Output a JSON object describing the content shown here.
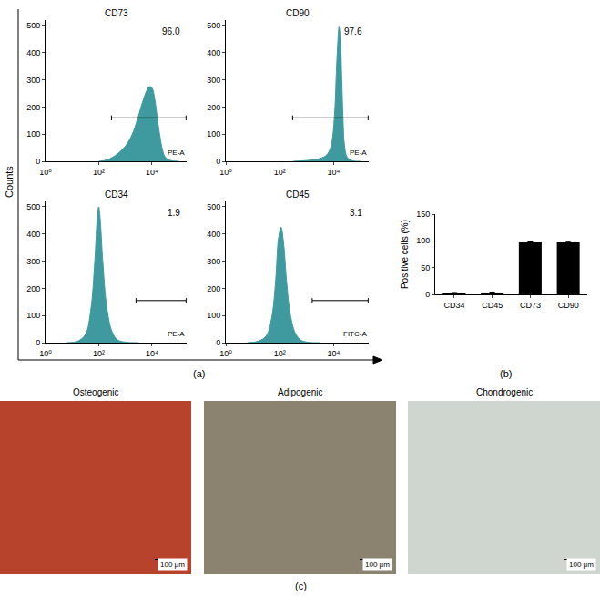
{
  "chart_data": [
    {
      "type": "area",
      "title": "CD73",
      "annotation": "96.0",
      "x_label": "PE-A",
      "color": "#3f9aa0",
      "log": "x",
      "xlim": [
        1,
        200000
      ],
      "xticks": [
        {
          "value": 1,
          "label": "10⁰"
        },
        {
          "value": 100,
          "label": "10²"
        },
        {
          "value": 10000,
          "label": "10⁴"
        }
      ],
      "ylim": [
        0,
        520
      ],
      "yticks": [
        0,
        100,
        200,
        300,
        400,
        500
      ],
      "x": [
        100,
        200,
        400,
        800,
        1260,
        2000,
        3160,
        4470,
        6310,
        7940,
        10000,
        12600,
        15800,
        20000,
        25100,
        31600,
        50100,
        100000
      ],
      "values": [
        0,
        5,
        20,
        45,
        70,
        110,
        170,
        220,
        260,
        275,
        270,
        230,
        160,
        90,
        40,
        15,
        3,
        0
      ],
      "gate": {
        "from": 300,
        "to": 190000,
        "y": 160
      }
    },
    {
      "type": "area",
      "title": "CD90",
      "annotation": "97.6",
      "x_label": "PE-A",
      "color": "#3f9aa0",
      "log": "x",
      "xlim": [
        1,
        200000
      ],
      "xticks": [
        {
          "value": 1,
          "label": "10⁰"
        },
        {
          "value": 100,
          "label": "10²"
        },
        {
          "value": 10000,
          "label": "10⁴"
        }
      ],
      "ylim": [
        0,
        520
      ],
      "yticks": [
        0,
        100,
        200,
        300,
        400,
        500
      ],
      "x": [
        316,
        1000,
        2510,
        5010,
        7080,
        8910,
        11200,
        12600,
        14100,
        15800,
        17800,
        20000,
        22400,
        25100,
        31600,
        50100,
        100000
      ],
      "values": [
        0,
        3,
        8,
        20,
        40,
        80,
        200,
        330,
        430,
        495,
        450,
        300,
        150,
        60,
        15,
        2,
        0
      ],
      "gate": {
        "from": 300,
        "to": 190000,
        "y": 160
      }
    },
    {
      "type": "area",
      "title": "CD34",
      "annotation": "1.9",
      "x_label": "PE-A",
      "color": "#3f9aa0",
      "log": "x",
      "xlim": [
        1,
        200000
      ],
      "xticks": [
        {
          "value": 1,
          "label": "10⁰"
        },
        {
          "value": 100,
          "label": "10²"
        },
        {
          "value": 10000,
          "label": "10⁴"
        }
      ],
      "ylim": [
        0,
        520
      ],
      "yticks": [
        0,
        100,
        200,
        300,
        400,
        500
      ],
      "x": [
        6.3,
        15.8,
        31.6,
        50.1,
        70.8,
        89.1,
        100,
        112,
        141,
        200,
        316,
        501,
        1000,
        3160
      ],
      "values": [
        0,
        5,
        30,
        120,
        300,
        470,
        500,
        460,
        300,
        130,
        40,
        10,
        2,
        0
      ],
      "gate": {
        "from": 2500,
        "to": 190000,
        "y": 155
      }
    },
    {
      "type": "area",
      "title": "CD45",
      "annotation": "3.1",
      "x_label": "FITC-A",
      "color": "#3f9aa0",
      "log": "x",
      "xlim": [
        1,
        200000
      ],
      "xticks": [
        {
          "value": 1,
          "label": "10⁰"
        },
        {
          "value": 100,
          "label": "10²"
        },
        {
          "value": 10000,
          "label": "10⁴"
        }
      ],
      "ylim": [
        0,
        520
      ],
      "yticks": [
        0,
        100,
        200,
        300,
        400,
        500
      ],
      "x": [
        6.3,
        15.8,
        31.6,
        50.1,
        70.8,
        89.1,
        112,
        141,
        178,
        251,
        398,
        631,
        1260,
        3160
      ],
      "values": [
        0,
        5,
        25,
        90,
        230,
        380,
        425,
        360,
        230,
        100,
        30,
        8,
        1,
        0
      ],
      "gate": {
        "from": 1600,
        "to": 190000,
        "y": 155
      }
    },
    {
      "type": "bar",
      "y_label": "Positive cells (%)",
      "color": "#000000",
      "categories": [
        "CD34",
        "CD45",
        "CD73",
        "CD90"
      ],
      "values": [
        2.5,
        3.5,
        97,
        97
      ],
      "errors": [
        1,
        0.8,
        1,
        1.5
      ],
      "ylim": [
        0,
        150
      ],
      "yticks": [
        0,
        50,
        100,
        150
      ]
    }
  ],
  "figure": {
    "a": {
      "label": "(a)",
      "y_label": "Counts"
    },
    "b": {
      "label": "(b)"
    },
    "c": {
      "label": "(c)",
      "images": [
        {
          "title": "Osteogenic",
          "scale_bar": "100 μm",
          "color": "#b8432c"
        },
        {
          "title": "Adipogenic",
          "scale_bar": "100 μm",
          "color": "#8c8270"
        },
        {
          "title": "Chondrogenic",
          "scale_bar": "100 μm",
          "color": "#cfd6cf"
        }
      ]
    }
  }
}
